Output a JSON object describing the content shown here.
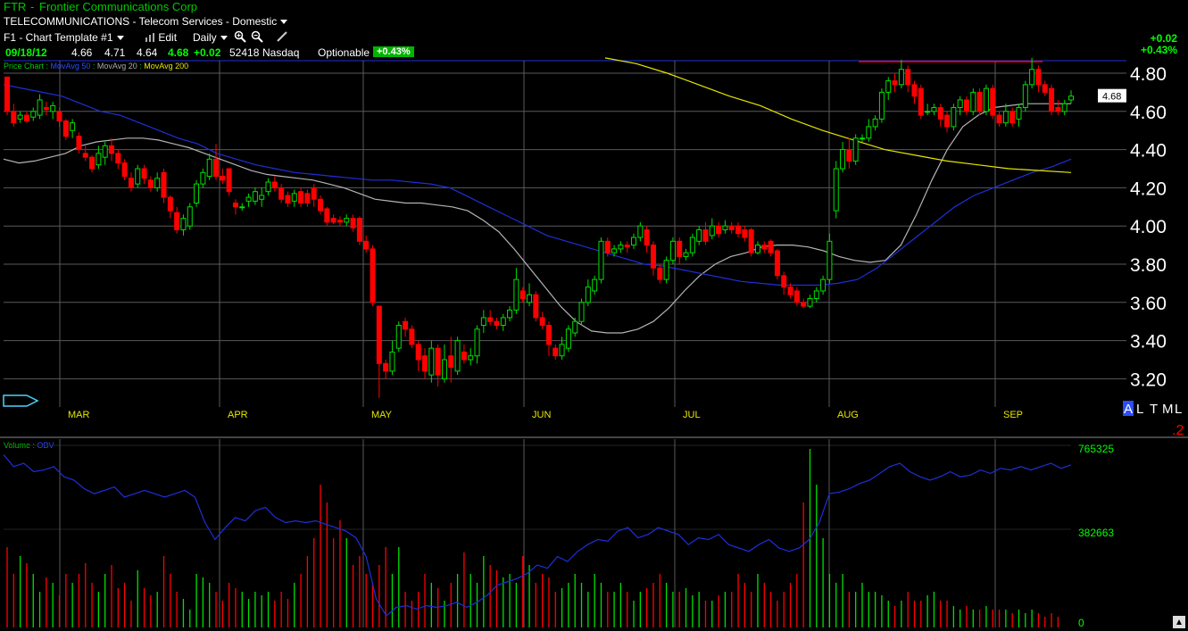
{
  "header": {
    "symbol": "FTR",
    "company": "Frontier Communications Corp",
    "industry": "TELECOMMUNICATIONS - Telecom Services - Domestic",
    "template": "F1 - Chart Template #1",
    "edit_label": "Edit",
    "period": "Daily",
    "date": "09/18/12",
    "open": "4.66",
    "high": "4.71",
    "low": "4.64",
    "close": "4.68",
    "change": "+0.02",
    "volume": "52418",
    "exchange": "Nasdaq",
    "optionable": "Optionable",
    "pct_badge": "+0.43%",
    "right_change": "+0.02",
    "right_pct": "+0.43%"
  },
  "legend": {
    "price": "Price Chart",
    "ma50": "MovAvg 50",
    "ma20": "MovAvg 20",
    "ma200": "MovAvg 200",
    "vol": "Volume",
    "obv": "OBV"
  },
  "colors": {
    "up": "#00e000",
    "down": "#ff0000",
    "ma50": "#1e2fd8",
    "ma20": "#b4b4b4",
    "ma200": "#e6e600",
    "obv": "#1e2fd8",
    "grid": "#5a5a5a",
    "axis_green": "#00ff00"
  },
  "price_labels": [
    "4.80",
    "4.60",
    "4.40",
    "4.20",
    "4.00",
    "3.80",
    "3.60",
    "3.40",
    "3.20"
  ],
  "current_price_tag": "4.68",
  "months": [
    "MAR",
    "APR",
    "MAY",
    "JUN",
    "JUL",
    "AUG",
    "SEP"
  ],
  "bottom_right": {
    "letters": "ALTML",
    "number": ".2"
  },
  "volume_labels": [
    "765325",
    "382663",
    "0"
  ],
  "chart_data": {
    "type": "candlestick",
    "ylim": [
      3.1,
      4.88
    ],
    "candles": [
      [
        4.78,
        4.6,
        4.78,
        4.58
      ],
      [
        4.6,
        4.54,
        4.64,
        4.52
      ],
      [
        4.56,
        4.58,
        4.6,
        4.54
      ],
      [
        4.58,
        4.55,
        4.6,
        4.54
      ],
      [
        4.57,
        4.6,
        4.62,
        4.55
      ],
      [
        4.58,
        4.66,
        4.69,
        4.56
      ],
      [
        4.62,
        4.61,
        4.65,
        4.58
      ],
      [
        4.6,
        4.63,
        4.65,
        4.56
      ],
      [
        4.6,
        4.55,
        4.62,
        4.52
      ],
      [
        4.55,
        4.47,
        4.56,
        4.45
      ],
      [
        4.5,
        4.54,
        4.56,
        4.46
      ],
      [
        4.47,
        4.4,
        4.49,
        4.38
      ],
      [
        4.38,
        4.36,
        4.42,
        4.34
      ],
      [
        4.36,
        4.3,
        4.37,
        4.28
      ],
      [
        4.32,
        4.38,
        4.42,
        4.3
      ],
      [
        4.36,
        4.42,
        4.44,
        4.32
      ],
      [
        4.42,
        4.38,
        4.46,
        4.34
      ],
      [
        4.38,
        4.33,
        4.4,
        4.3
      ],
      [
        4.33,
        4.26,
        4.35,
        4.24
      ],
      [
        4.25,
        4.2,
        4.28,
        4.18
      ],
      [
        4.22,
        4.3,
        4.32,
        4.2
      ],
      [
        4.3,
        4.25,
        4.32,
        4.22
      ],
      [
        4.24,
        4.2,
        4.26,
        4.18
      ],
      [
        4.2,
        4.25,
        4.28,
        4.18
      ],
      [
        4.28,
        4.15,
        4.3,
        4.12
      ],
      [
        4.15,
        4.08,
        4.16,
        4.04
      ],
      [
        4.07,
        3.98,
        4.1,
        3.96
      ],
      [
        3.98,
        4.04,
        4.06,
        3.95
      ],
      [
        4.0,
        4.1,
        4.12,
        3.98
      ],
      [
        4.12,
        4.22,
        4.24,
        4.1
      ],
      [
        4.22,
        4.28,
        4.3,
        4.2
      ],
      [
        4.26,
        4.35,
        4.38,
        4.24
      ],
      [
        4.35,
        4.26,
        4.43,
        4.24
      ],
      [
        4.26,
        4.24,
        4.3,
        4.22
      ],
      [
        4.3,
        4.18,
        4.3,
        4.16
      ],
      [
        4.12,
        4.1,
        4.14,
        4.06
      ],
      [
        4.1,
        4.1,
        4.12,
        4.08
      ],
      [
        4.13,
        4.15,
        4.17,
        4.1
      ],
      [
        4.13,
        4.18,
        4.2,
        4.11
      ],
      [
        4.14,
        4.16,
        4.2,
        4.1
      ],
      [
        4.18,
        4.23,
        4.25,
        4.16
      ],
      [
        4.23,
        4.2,
        4.26,
        4.18
      ],
      [
        4.2,
        4.14,
        4.22,
        4.12
      ],
      [
        4.16,
        4.12,
        4.18,
        4.1
      ],
      [
        4.13,
        4.17,
        4.19,
        4.1
      ],
      [
        4.18,
        4.12,
        4.2,
        4.1
      ],
      [
        4.17,
        4.12,
        4.19,
        4.1
      ],
      [
        4.2,
        4.14,
        4.22,
        4.1
      ],
      [
        4.14,
        4.08,
        4.16,
        4.06
      ],
      [
        4.09,
        4.02,
        4.1,
        4.0
      ],
      [
        4.04,
        4.02,
        4.06,
        4.01
      ],
      [
        4.03,
        4.02,
        4.05,
        4.0
      ],
      [
        4.02,
        4.04,
        4.06,
        4.0
      ],
      [
        4.04,
        3.99,
        4.06,
        3.97
      ],
      [
        4.04,
        3.92,
        4.05,
        3.9
      ],
      [
        3.92,
        3.88,
        3.95,
        3.86
      ],
      [
        3.88,
        3.6,
        3.9,
        3.58
      ],
      [
        3.58,
        3.28,
        3.58,
        3.1
      ],
      [
        3.28,
        3.24,
        3.3,
        3.2
      ],
      [
        3.24,
        3.34,
        3.4,
        3.22
      ],
      [
        3.36,
        3.48,
        3.5,
        3.34
      ],
      [
        3.5,
        3.46,
        3.52,
        3.42
      ],
      [
        3.46,
        3.38,
        3.48,
        3.36
      ],
      [
        3.38,
        3.3,
        3.4,
        3.24
      ],
      [
        3.32,
        3.24,
        3.36,
        3.2
      ],
      [
        3.22,
        3.36,
        3.4,
        3.18
      ],
      [
        3.36,
        3.22,
        3.38,
        3.16
      ],
      [
        3.2,
        3.3,
        3.38,
        3.18
      ],
      [
        3.32,
        3.26,
        3.42,
        3.18
      ],
      [
        3.24,
        3.4,
        3.42,
        3.22
      ],
      [
        3.34,
        3.3,
        3.38,
        3.28
      ],
      [
        3.3,
        3.32,
        3.36,
        3.27
      ],
      [
        3.32,
        3.46,
        3.48,
        3.28
      ],
      [
        3.48,
        3.52,
        3.56,
        3.44
      ],
      [
        3.52,
        3.5,
        3.56,
        3.48
      ],
      [
        3.5,
        3.48,
        3.52,
        3.46
      ],
      [
        3.48,
        3.52,
        3.54,
        3.45
      ],
      [
        3.52,
        3.56,
        3.58,
        3.5
      ],
      [
        3.56,
        3.72,
        3.78,
        3.54
      ],
      [
        3.66,
        3.62,
        3.68,
        3.6
      ],
      [
        3.6,
        3.64,
        3.7,
        3.58
      ],
      [
        3.64,
        3.52,
        3.66,
        3.5
      ],
      [
        3.52,
        3.48,
        3.55,
        3.46
      ],
      [
        3.48,
        3.38,
        3.5,
        3.32
      ],
      [
        3.36,
        3.32,
        3.38,
        3.3
      ],
      [
        3.32,
        3.38,
        3.42,
        3.3
      ],
      [
        3.36,
        3.46,
        3.48,
        3.34
      ],
      [
        3.44,
        3.5,
        3.52,
        3.42
      ],
      [
        3.5,
        3.6,
        3.62,
        3.48
      ],
      [
        3.6,
        3.68,
        3.72,
        3.58
      ],
      [
        3.66,
        3.72,
        3.74,
        3.64
      ],
      [
        3.72,
        3.92,
        3.94,
        3.7
      ],
      [
        3.92,
        3.86,
        3.94,
        3.84
      ],
      [
        3.86,
        3.88,
        3.9,
        3.84
      ],
      [
        3.88,
        3.9,
        3.92,
        3.86
      ],
      [
        3.9,
        3.89,
        3.92,
        3.86
      ],
      [
        3.9,
        3.94,
        3.96,
        3.88
      ],
      [
        3.94,
        4.0,
        4.02,
        3.92
      ],
      [
        3.98,
        3.9,
        4.0,
        3.86
      ],
      [
        3.9,
        3.78,
        3.92,
        3.74
      ],
      [
        3.78,
        3.72,
        3.8,
        3.7
      ],
      [
        3.72,
        3.82,
        3.84,
        3.7
      ],
      [
        3.82,
        3.92,
        3.94,
        3.8
      ],
      [
        3.92,
        3.84,
        3.94,
        3.8
      ],
      [
        3.84,
        3.86,
        3.88,
        3.82
      ],
      [
        3.86,
        3.94,
        3.96,
        3.84
      ],
      [
        3.92,
        3.98,
        4.0,
        3.9
      ],
      [
        3.98,
        3.92,
        4.02,
        3.9
      ],
      [
        3.95,
        4.0,
        4.04,
        3.93
      ],
      [
        4.0,
        3.96,
        4.02,
        3.94
      ],
      [
        3.98,
        4.0,
        4.03,
        3.96
      ],
      [
        4.0,
        3.98,
        4.02,
        3.96
      ],
      [
        4.0,
        3.96,
        4.02,
        3.94
      ],
      [
        3.98,
        3.94,
        4.0,
        3.92
      ],
      [
        3.98,
        3.86,
        3.99,
        3.84
      ],
      [
        3.86,
        3.9,
        3.92,
        3.85
      ],
      [
        3.9,
        3.88,
        3.92,
        3.86
      ],
      [
        3.92,
        3.86,
        3.93,
        3.84
      ],
      [
        3.87,
        3.74,
        3.88,
        3.72
      ],
      [
        3.74,
        3.68,
        3.76,
        3.64
      ],
      [
        3.68,
        3.64,
        3.7,
        3.62
      ],
      [
        3.66,
        3.6,
        3.68,
        3.58
      ],
      [
        3.6,
        3.58,
        3.62,
        3.57
      ],
      [
        3.58,
        3.62,
        3.64,
        3.57
      ],
      [
        3.62,
        3.66,
        3.68,
        3.6
      ],
      [
        3.66,
        3.72,
        3.74,
        3.64
      ],
      [
        3.72,
        3.92,
        3.96,
        3.7
      ],
      [
        4.08,
        4.3,
        4.34,
        4.04
      ],
      [
        4.3,
        4.4,
        4.44,
        4.28
      ],
      [
        4.4,
        4.34,
        4.46,
        4.3
      ],
      [
        4.34,
        4.46,
        4.48,
        4.32
      ],
      [
        4.46,
        4.46,
        4.48,
        4.44
      ],
      [
        4.46,
        4.52,
        4.56,
        4.44
      ],
      [
        4.52,
        4.56,
        4.58,
        4.5
      ],
      [
        4.56,
        4.7,
        4.72,
        4.54
      ],
      [
        4.7,
        4.76,
        4.78,
        4.66
      ],
      [
        4.76,
        4.74,
        4.8,
        4.7
      ],
      [
        4.74,
        4.82,
        4.87,
        4.72
      ],
      [
        4.82,
        4.74,
        4.84,
        4.7
      ],
      [
        4.74,
        4.68,
        4.76,
        4.64
      ],
      [
        4.72,
        4.58,
        4.74,
        4.56
      ],
      [
        4.6,
        4.6,
        4.64,
        4.58
      ],
      [
        4.6,
        4.62,
        4.64,
        4.58
      ],
      [
        4.62,
        4.56,
        4.64,
        4.52
      ],
      [
        4.58,
        4.52,
        4.6,
        4.49
      ],
      [
        4.52,
        4.62,
        4.64,
        4.5
      ],
      [
        4.62,
        4.66,
        4.68,
        4.58
      ],
      [
        4.66,
        4.6,
        4.68,
        4.58
      ],
      [
        4.6,
        4.7,
        4.72,
        4.58
      ],
      [
        4.7,
        4.6,
        4.72,
        4.58
      ],
      [
        4.6,
        4.72,
        4.74,
        4.58
      ],
      [
        4.72,
        4.58,
        4.74,
        4.56
      ],
      [
        4.58,
        4.54,
        4.6,
        4.52
      ],
      [
        4.54,
        4.6,
        4.64,
        4.52
      ],
      [
        4.6,
        4.54,
        4.62,
        4.52
      ],
      [
        4.56,
        4.62,
        4.64,
        4.52
      ],
      [
        4.62,
        4.74,
        4.76,
        4.6
      ],
      [
        4.74,
        4.82,
        4.88,
        4.72
      ],
      [
        4.82,
        4.74,
        4.84,
        4.7
      ],
      [
        4.74,
        4.7,
        4.76,
        4.68
      ],
      [
        4.72,
        4.6,
        4.74,
        4.58
      ],
      [
        4.62,
        4.6,
        4.66,
        4.58
      ],
      [
        4.6,
        4.64,
        4.66,
        4.58
      ],
      [
        4.66,
        4.68,
        4.71,
        4.64
      ]
    ],
    "ma20": [
      4.35,
      4.33,
      4.34,
      4.36,
      4.38,
      4.42,
      4.44,
      4.45,
      4.46,
      4.46,
      4.45,
      4.43,
      4.41,
      4.38,
      4.35,
      4.32,
      4.29,
      4.27,
      4.26,
      4.25,
      4.24,
      4.22,
      4.2,
      4.17,
      4.14,
      4.13,
      4.12,
      4.12,
      4.11,
      4.1,
      4.08,
      4.03,
      3.97,
      3.88,
      3.78,
      3.68,
      3.58,
      3.5,
      3.45,
      3.44,
      3.44,
      3.46,
      3.5,
      3.57,
      3.66,
      3.74,
      3.8,
      3.84,
      3.86,
      3.89,
      3.9,
      3.9,
      3.89,
      3.87,
      3.84,
      3.82,
      3.81,
      3.82,
      3.9,
      4.06,
      4.24,
      4.4,
      4.52,
      4.58,
      4.62,
      4.63,
      4.64,
      4.64,
      4.64,
      4.64
    ],
    "ma50": [
      4.74,
      4.72,
      4.7,
      4.68,
      4.64,
      4.6,
      4.58,
      4.54,
      4.5,
      4.46,
      4.43,
      4.38,
      4.35,
      4.32,
      4.3,
      4.28,
      4.27,
      4.26,
      4.25,
      4.24,
      4.24,
      4.23,
      4.22,
      4.2,
      4.15,
      4.1,
      4.05,
      4.0,
      3.95,
      3.92,
      3.89,
      3.86,
      3.83,
      3.8,
      3.79,
      3.77,
      3.75,
      3.73,
      3.71,
      3.7,
      3.69,
      3.69,
      3.69,
      3.7,
      3.72,
      3.78,
      3.86,
      3.94,
      4.02,
      4.1,
      4.16,
      4.2,
      4.24,
      4.28,
      4.31,
      4.35
    ],
    "ma200": [
      4.88,
      4.85,
      4.8,
      4.74,
      4.68,
      4.63,
      4.56,
      4.5,
      4.45,
      4.4,
      4.37,
      4.34,
      4.32,
      4.3,
      4.29,
      4.28
    ],
    "volume": [
      0.45,
      0.3,
      0.4,
      0.36,
      0.3,
      0.2,
      0.28,
      0.25,
      0.18,
      0.3,
      0.25,
      0.3,
      0.36,
      0.25,
      0.2,
      0.3,
      0.35,
      0.22,
      0.25,
      0.15,
      0.32,
      0.22,
      0.18,
      0.2,
      0.4,
      0.3,
      0.2,
      0.16,
      0.1,
      0.3,
      0.28,
      0.25,
      0.2,
      0.15,
      0.25,
      0.22,
      0.2,
      0.16,
      0.2,
      0.18,
      0.2,
      0.15,
      0.2,
      0.16,
      0.25,
      0.3,
      0.4,
      0.5,
      0.8,
      0.7,
      0.5,
      0.6,
      0.5,
      0.35,
      0.4,
      0.3,
      0.25,
      0.35,
      0.45,
      0.3,
      0.45,
      0.2,
      0.15,
      0.2,
      0.3,
      0.25,
      0.22,
      0.15,
      0.25,
      0.3,
      0.42,
      0.3,
      0.25,
      0.4,
      0.35,
      0.32,
      0.28,
      0.3,
      0.25,
      0.4,
      0.35,
      0.25,
      0.3,
      0.28,
      0.2,
      0.22,
      0.25,
      0.3,
      0.25,
      0.2,
      0.3,
      0.25,
      0.2,
      0.2,
      0.25,
      0.2,
      0.15,
      0.2,
      0.22,
      0.25,
      0.3,
      0.25,
      0.2,
      0.2,
      0.22,
      0.18,
      0.2,
      0.15,
      0.15,
      0.18,
      0.2,
      0.2,
      0.3,
      0.25,
      0.2,
      0.3,
      0.25,
      0.2,
      0.15,
      0.2,
      0.25,
      0.3,
      0.7,
      1.0,
      0.8,
      0.5,
      0.3,
      0.25,
      0.3,
      0.2,
      0.2,
      0.25,
      0.2,
      0.2,
      0.18,
      0.15,
      0.12,
      0.15,
      0.2,
      0.15,
      0.15,
      0.18,
      0.2,
      0.15,
      0.15,
      0.12,
      0.1,
      0.12,
      0.1,
      0.1,
      0.12,
      0.1,
      0.1,
      0.1,
      0.08,
      0.1,
      0.08,
      0.1,
      0.08,
      0.06,
      0.08,
      0.06
    ],
    "obv": [
      0.95,
      0.88,
      0.9,
      0.85,
      0.86,
      0.88,
      0.82,
      0.8,
      0.75,
      0.72,
      0.74,
      0.76,
      0.7,
      0.72,
      0.74,
      0.72,
      0.7,
      0.72,
      0.74,
      0.7,
      0.55,
      0.45,
      0.52,
      0.58,
      0.56,
      0.62,
      0.64,
      0.58,
      0.55,
      0.56,
      0.55,
      0.56,
      0.54,
      0.52,
      0.5,
      0.46,
      0.35,
      0.1,
      0.0,
      0.05,
      0.06,
      0.04,
      0.06,
      0.05,
      0.06,
      0.08,
      0.05,
      0.08,
      0.12,
      0.18,
      0.2,
      0.22,
      0.25,
      0.3,
      0.28,
      0.35,
      0.32,
      0.38,
      0.42,
      0.45,
      0.44,
      0.5,
      0.52,
      0.46,
      0.48,
      0.52,
      0.5,
      0.48,
      0.42,
      0.46,
      0.45,
      0.48,
      0.42,
      0.4,
      0.38,
      0.42,
      0.45,
      0.4,
      0.38,
      0.4,
      0.45,
      0.55,
      0.72,
      0.73,
      0.75,
      0.78,
      0.8,
      0.84,
      0.88,
      0.9,
      0.85,
      0.82,
      0.8,
      0.82,
      0.85,
      0.82,
      0.83,
      0.86,
      0.84,
      0.87,
      0.86,
      0.88,
      0.86,
      0.88,
      0.9,
      0.87,
      0.89
    ]
  }
}
